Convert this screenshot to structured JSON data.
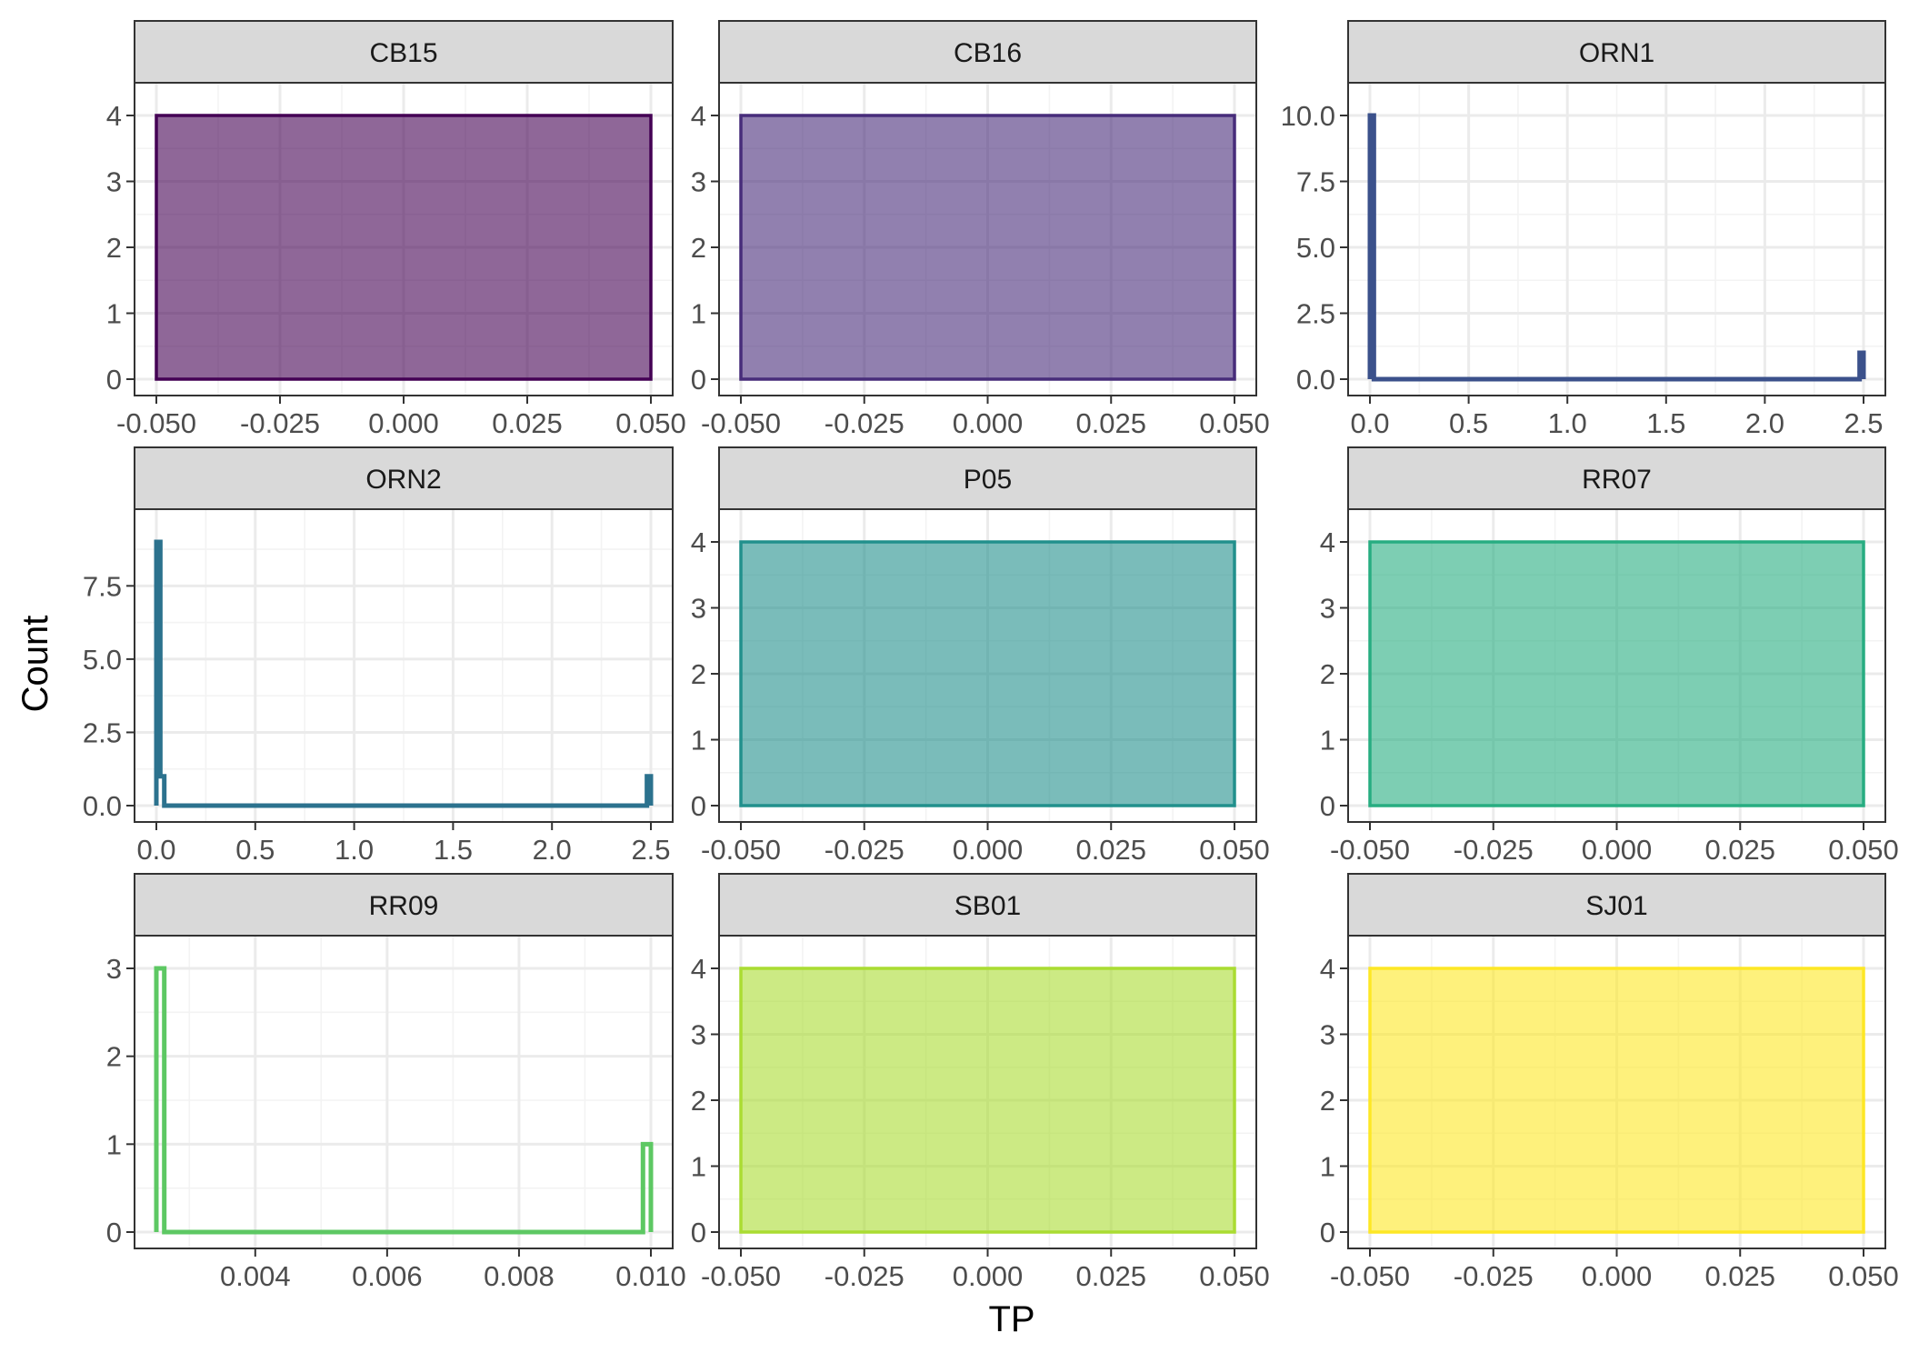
{
  "figure": {
    "xlabel": "TP",
    "ylabel": "Count",
    "background": "#ffffff",
    "panel_border_color": "#333333",
    "strip_fill": "#d9d9d9",
    "grid_major_color": "#ebebeb",
    "grid_minor_color": "#f3f3f3",
    "axis_text_color": "#4d4d4d"
  },
  "chart_data": [
    {
      "type": "area",
      "facet": "CB15",
      "color": "#440154",
      "fill_opacity": 0.6,
      "xlim": [
        -0.05,
        0.05
      ],
      "ylim": [
        0,
        4
      ],
      "xticks": [
        -0.05,
        -0.025,
        0,
        0.025,
        0.05
      ],
      "xtick_labels": [
        "-0.050",
        "-0.025",
        "0.000",
        "0.025",
        "0.050"
      ],
      "yticks": [
        0,
        1,
        2,
        3,
        4
      ],
      "ytick_labels": [
        "0",
        "1",
        "2",
        "3",
        "4"
      ],
      "x": [
        -0.05,
        -0.05,
        0.05,
        0.05
      ],
      "y": [
        0,
        4,
        4,
        0
      ],
      "filled": true
    },
    {
      "type": "area",
      "facet": "CB16",
      "color": "#472C7A",
      "fill_opacity": 0.6,
      "xlim": [
        -0.05,
        0.05
      ],
      "ylim": [
        0,
        4
      ],
      "xticks": [
        -0.05,
        -0.025,
        0,
        0.025,
        0.05
      ],
      "xtick_labels": [
        "-0.050",
        "-0.025",
        "0.000",
        "0.025",
        "0.050"
      ],
      "yticks": [
        0,
        1,
        2,
        3,
        4
      ],
      "ytick_labels": [
        "0",
        "1",
        "2",
        "3",
        "4"
      ],
      "x": [
        -0.05,
        -0.05,
        0.05,
        0.05
      ],
      "y": [
        0,
        4,
        4,
        0
      ],
      "filled": true
    },
    {
      "type": "line",
      "facet": "ORN1",
      "color": "#3B518B",
      "fill_opacity": 0,
      "xlim": [
        0,
        2.5
      ],
      "ylim": [
        0,
        10
      ],
      "xticks": [
        0,
        0.5,
        1,
        1.5,
        2,
        2.5
      ],
      "xtick_labels": [
        "0.0",
        "0.5",
        "1.0",
        "1.5",
        "2.0",
        "2.5"
      ],
      "yticks": [
        0,
        2.5,
        5,
        7.5,
        10
      ],
      "ytick_labels": [
        "0.0",
        "2.5",
        "5.0",
        "7.5",
        "10.0"
      ],
      "x": [
        0,
        0,
        0.02,
        0.02,
        2.48,
        2.48,
        2.5,
        2.5
      ],
      "y": [
        0,
        10,
        10,
        0,
        0,
        1,
        1,
        0
      ],
      "filled": false
    },
    {
      "type": "line",
      "facet": "ORN2",
      "color": "#2C728E",
      "fill_opacity": 0,
      "xlim": [
        0,
        2.5
      ],
      "ylim": [
        0,
        9
      ],
      "xticks": [
        0,
        0.5,
        1,
        1.5,
        2,
        2.5
      ],
      "xtick_labels": [
        "0.0",
        "0.5",
        "1.0",
        "1.5",
        "2.0",
        "2.5"
      ],
      "yticks": [
        0,
        2.5,
        5,
        7.5
      ],
      "ytick_labels": [
        "0.0",
        "2.5",
        "5.0",
        "7.5"
      ],
      "x": [
        0,
        0,
        0.02,
        0.02,
        0.04,
        0.04,
        2.48,
        2.48,
        2.5,
        2.5
      ],
      "y": [
        0,
        9,
        9,
        1,
        1,
        0,
        0,
        1,
        1,
        0
      ],
      "filled": false
    },
    {
      "type": "area",
      "facet": "P05",
      "color": "#21908C",
      "fill_opacity": 0.6,
      "xlim": [
        -0.05,
        0.05
      ],
      "ylim": [
        0,
        4
      ],
      "xticks": [
        -0.05,
        -0.025,
        0,
        0.025,
        0.05
      ],
      "xtick_labels": [
        "-0.050",
        "-0.025",
        "0.000",
        "0.025",
        "0.050"
      ],
      "yticks": [
        0,
        1,
        2,
        3,
        4
      ],
      "ytick_labels": [
        "0",
        "1",
        "2",
        "3",
        "4"
      ],
      "x": [
        -0.05,
        -0.05,
        0.05,
        0.05
      ],
      "y": [
        0,
        4,
        4,
        0
      ],
      "filled": true
    },
    {
      "type": "area",
      "facet": "RR07",
      "color": "#27AD81",
      "fill_opacity": 0.6,
      "xlim": [
        -0.05,
        0.05
      ],
      "ylim": [
        0,
        4
      ],
      "xticks": [
        -0.05,
        -0.025,
        0,
        0.025,
        0.05
      ],
      "xtick_labels": [
        "-0.050",
        "-0.025",
        "0.000",
        "0.025",
        "0.050"
      ],
      "yticks": [
        0,
        1,
        2,
        3,
        4
      ],
      "ytick_labels": [
        "0",
        "1",
        "2",
        "3",
        "4"
      ],
      "x": [
        -0.05,
        -0.05,
        0.05,
        0.05
      ],
      "y": [
        0,
        4,
        4,
        0
      ],
      "filled": true
    },
    {
      "type": "line",
      "facet": "RR09",
      "color": "#5DC863",
      "fill_opacity": 0,
      "xlim": [
        0.0025,
        0.01
      ],
      "ylim": [
        0,
        3
      ],
      "xticks": [
        0.004,
        0.006,
        0.008,
        0.01
      ],
      "xtick_labels": [
        "0.004",
        "0.006",
        "0.008",
        "0.010"
      ],
      "yticks": [
        0,
        1,
        2,
        3
      ],
      "ytick_labels": [
        "0",
        "1",
        "2",
        "3"
      ],
      "x": [
        0.0025,
        0.0025,
        0.00262,
        0.00262,
        0.00988,
        0.00988,
        0.01,
        0.01
      ],
      "y": [
        0,
        3,
        3,
        0,
        0,
        1,
        1,
        0
      ],
      "filled": false
    },
    {
      "type": "area",
      "facet": "SB01",
      "color": "#AADC32",
      "fill_opacity": 0.6,
      "xlim": [
        -0.05,
        0.05
      ],
      "ylim": [
        0,
        4
      ],
      "xticks": [
        -0.05,
        -0.025,
        0,
        0.025,
        0.05
      ],
      "xtick_labels": [
        "-0.050",
        "-0.025",
        "0.000",
        "0.025",
        "0.050"
      ],
      "yticks": [
        0,
        1,
        2,
        3,
        4
      ],
      "ytick_labels": [
        "0",
        "1",
        "2",
        "3",
        "4"
      ],
      "x": [
        -0.05,
        -0.05,
        0.05,
        0.05
      ],
      "y": [
        0,
        4,
        4,
        0
      ],
      "filled": true
    },
    {
      "type": "area",
      "facet": "SJ01",
      "color": "#FDE725",
      "fill_opacity": 0.6,
      "xlim": [
        -0.05,
        0.05
      ],
      "ylim": [
        0,
        4
      ],
      "xticks": [
        -0.05,
        -0.025,
        0,
        0.025,
        0.05
      ],
      "xtick_labels": [
        "-0.050",
        "-0.025",
        "0.000",
        "0.025",
        "0.050"
      ],
      "yticks": [
        0,
        1,
        2,
        3,
        4
      ],
      "ytick_labels": [
        "0",
        "1",
        "2",
        "3",
        "4"
      ],
      "x": [
        -0.05,
        -0.05,
        0.05,
        0.05
      ],
      "y": [
        0,
        4,
        4,
        0
      ],
      "filled": true
    }
  ]
}
